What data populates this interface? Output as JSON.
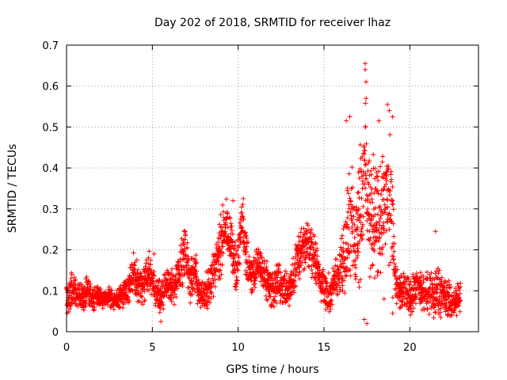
{
  "chart_data": {
    "type": "scatter",
    "title": "Day 202 of 2018, SRMTID for receiver lhaz",
    "xlabel": "GPS time / hours",
    "ylabel": "SRMTID / TECUs",
    "xlim": [
      0,
      24
    ],
    "ylim": [
      0,
      0.7
    ],
    "xticks": [
      0,
      5,
      10,
      15,
      20
    ],
    "xtick_labels": [
      "0",
      "5",
      "10",
      "15",
      "20"
    ],
    "yticks": [
      0,
      0.1,
      0.2,
      0.3,
      0.4,
      0.5,
      0.6,
      0.7
    ],
    "ytick_labels": [
      "0",
      "0.1",
      "0.2",
      "0.3",
      "0.4",
      "0.5",
      "0.6",
      "0.7"
    ],
    "grid": true,
    "marker": "plus",
    "color": "#ff0000",
    "series": [
      {
        "name": "SRMTID",
        "x": [
          0.0,
          0.3,
          0.6,
          0.9,
          1.2,
          1.5,
          1.8,
          2.1,
          2.4,
          2.7,
          3.0,
          3.3,
          3.6,
          3.9,
          4.2,
          4.5,
          4.8,
          5.1,
          5.4,
          5.7,
          6.0,
          6.3,
          6.6,
          6.9,
          7.2,
          7.5,
          7.8,
          8.1,
          8.4,
          8.7,
          9.0,
          9.3,
          9.6,
          9.9,
          10.2,
          10.5,
          10.8,
          11.1,
          11.4,
          11.7,
          12.0,
          12.3,
          12.6,
          12.9,
          13.2,
          13.5,
          13.8,
          14.1,
          14.4,
          14.7,
          15.0,
          15.3,
          15.6,
          15.9,
          16.2,
          16.5,
          16.8,
          17.1,
          17.4,
          17.7,
          18.0,
          18.3,
          18.6,
          18.9,
          19.2,
          19.5,
          19.8,
          20.1,
          20.4,
          20.7,
          21.0,
          21.3,
          21.6,
          21.9,
          22.2,
          22.5,
          22.8
        ],
        "y": [
          0.08,
          0.11,
          0.09,
          0.08,
          0.1,
          0.08,
          0.09,
          0.08,
          0.09,
          0.07,
          0.08,
          0.09,
          0.1,
          0.14,
          0.11,
          0.12,
          0.15,
          0.11,
          0.09,
          0.1,
          0.12,
          0.1,
          0.15,
          0.2,
          0.12,
          0.14,
          0.09,
          0.1,
          0.12,
          0.17,
          0.21,
          0.26,
          0.22,
          0.14,
          0.27,
          0.18,
          0.13,
          0.16,
          0.15,
          0.12,
          0.1,
          0.12,
          0.11,
          0.1,
          0.14,
          0.18,
          0.2,
          0.21,
          0.19,
          0.14,
          0.1,
          0.09,
          0.12,
          0.14,
          0.22,
          0.28,
          0.23,
          0.3,
          0.4,
          0.26,
          0.3,
          0.25,
          0.35,
          0.28,
          0.11,
          0.09,
          0.1,
          0.08,
          0.12,
          0.09,
          0.1,
          0.09,
          0.1,
          0.1,
          0.08,
          0.07,
          0.08
        ],
        "spread": [
          0.03,
          0.04,
          0.03,
          0.03,
          0.03,
          0.03,
          0.02,
          0.02,
          0.02,
          0.02,
          0.02,
          0.03,
          0.03,
          0.04,
          0.04,
          0.04,
          0.04,
          0.04,
          0.04,
          0.04,
          0.04,
          0.04,
          0.05,
          0.05,
          0.04,
          0.05,
          0.03,
          0.04,
          0.04,
          0.05,
          0.07,
          0.05,
          0.05,
          0.05,
          0.05,
          0.06,
          0.04,
          0.04,
          0.04,
          0.04,
          0.04,
          0.04,
          0.04,
          0.04,
          0.04,
          0.05,
          0.05,
          0.05,
          0.05,
          0.04,
          0.04,
          0.04,
          0.04,
          0.05,
          0.1,
          0.12,
          0.1,
          0.14,
          0.14,
          0.12,
          0.12,
          0.12,
          0.12,
          0.14,
          0.04,
          0.04,
          0.04,
          0.04,
          0.04,
          0.04,
          0.04,
          0.04,
          0.05,
          0.04,
          0.04,
          0.03,
          0.03
        ],
        "extremes": [
          [
            9.7,
            0.32
          ],
          [
            10.3,
            0.325
          ],
          [
            16.3,
            0.515
          ],
          [
            16.5,
            0.525
          ],
          [
            17.4,
            0.655
          ],
          [
            17.4,
            0.64
          ],
          [
            17.45,
            0.61
          ],
          [
            17.45,
            0.57
          ],
          [
            17.4,
            0.5
          ],
          [
            17.5,
            0.02
          ],
          [
            17.35,
            0.03
          ],
          [
            18.7,
            0.555
          ],
          [
            18.8,
            0.54
          ],
          [
            19.0,
            0.525
          ],
          [
            18.2,
            0.515
          ],
          [
            18.5,
            0.08
          ],
          [
            21.5,
            0.245
          ],
          [
            6.9,
            0.245
          ],
          [
            5.1,
            0.19
          ],
          [
            4.1,
            0.175
          ],
          [
            19.0,
            0.045
          ],
          [
            21.8,
            0.035
          ],
          [
            5.5,
            0.025
          ]
        ]
      }
    ]
  }
}
